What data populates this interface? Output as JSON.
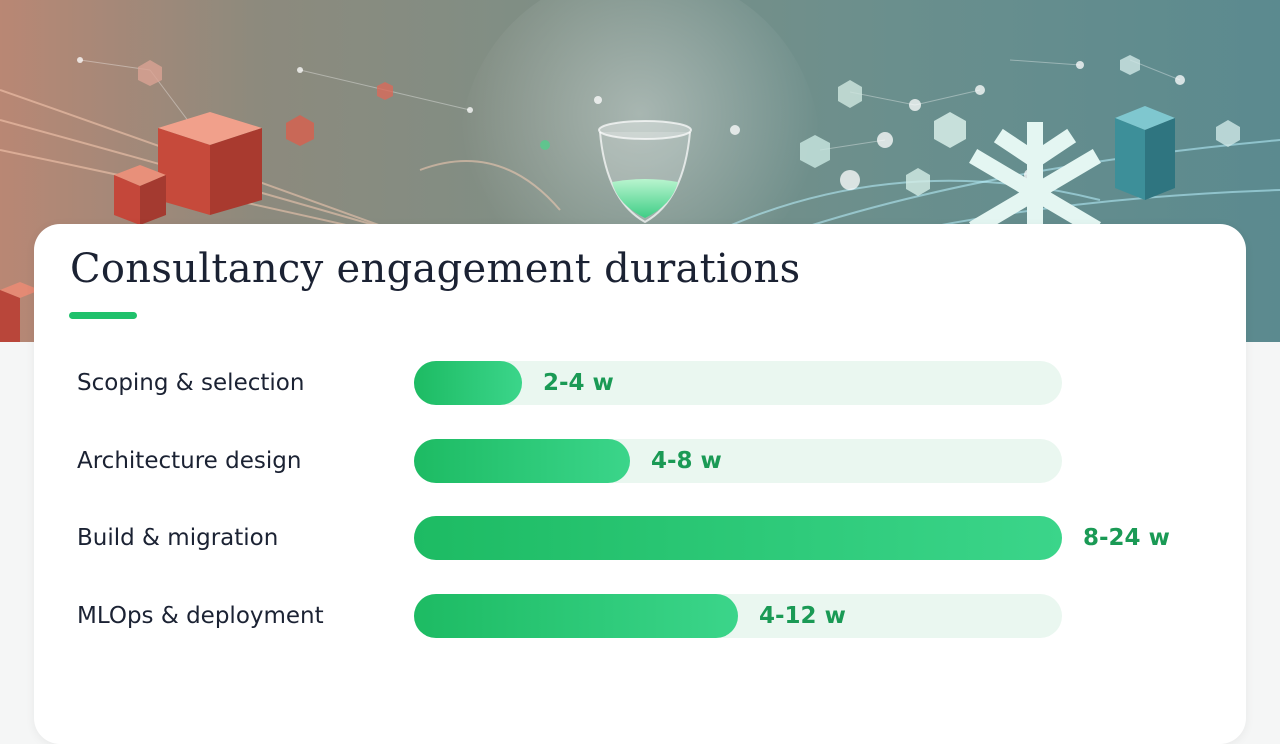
{
  "colors": {
    "accent": "#1fc16b",
    "bar_track": "#eaf7f0",
    "value_text": "#1a9a55",
    "title_text": "#1b2233"
  },
  "banner": {
    "icons": [
      "hourglass-icon",
      "cube-icon",
      "snowflake-icon",
      "network-node-icon"
    ]
  },
  "chart_data": {
    "type": "bar",
    "orientation": "horizontal",
    "title": "Consultancy engagement durations",
    "categories": [
      "Scoping & selection",
      "Architecture design",
      "Build & migration",
      "MLOps & deployment"
    ],
    "value_labels": [
      "2-4 w",
      "4-8 w",
      "8-24 w",
      "4-12 w"
    ],
    "ranges_weeks": [
      [
        2,
        4
      ],
      [
        4,
        8
      ],
      [
        8,
        24
      ],
      [
        4,
        12
      ]
    ],
    "values": [
      4,
      8,
      24,
      12
    ],
    "xlim": [
      0,
      24
    ],
    "xlabel": "",
    "ylabel": "",
    "grid": false,
    "legend": "none"
  }
}
